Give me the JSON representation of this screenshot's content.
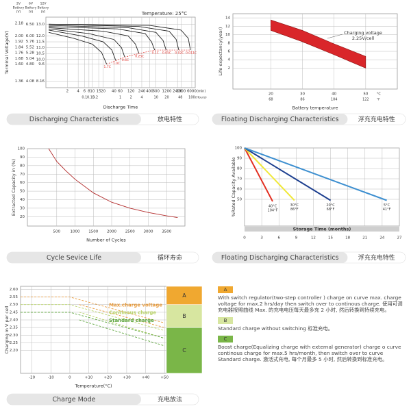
{
  "chart_data": [
    {
      "type": "line",
      "title": "Temperature: 25°C",
      "y_label": "Terminal Voltage(V)",
      "x_label": "Discharge Time",
      "x_unit": "(min)",
      "x2_unit": "(Hours)",
      "log_x": true,
      "grid": true,
      "end_line_color": "#e0302a",
      "xlim": [
        0.5,
        7500
      ],
      "x2lim": [
        0.008333,
        125
      ],
      "ylim": [
        7.6,
        13.6
      ],
      "ylim_6v": [
        3.8,
        6.8
      ],
      "ylim_2v": [
        1.2667,
        2.2667
      ],
      "xticks": [
        2,
        4,
        6,
        8,
        10,
        15,
        20,
        40,
        60,
        120,
        240,
        400,
        600,
        1200,
        2400,
        3000,
        6000
      ],
      "x2ticks": [
        0.1,
        0.15,
        0.2,
        1,
        2,
        4,
        10,
        20,
        48,
        100
      ],
      "y_headers": [
        [
          "2V",
          "Battery",
          "(V)"
        ],
        [
          "6V",
          "Battery",
          "(V)"
        ],
        [
          "12V",
          "Battery",
          "(V)"
        ]
      ],
      "yticks": [
        {
          "value": 13,
          "label": "13.0"
        },
        {
          "value": 12,
          "label": "12.0"
        },
        11.5,
        {
          "value": 11,
          "label": "11.0"
        },
        10.5,
        {
          "value": 10,
          "label": "10.0"
        },
        9.6,
        8.16
      ],
      "yticks_6v": [
        {
          "value": 6.5,
          "label": "6.50"
        },
        {
          "value": 6,
          "label": "6.00"
        },
        5.76,
        5.52,
        5.28,
        5.04,
        {
          "value": 4.8,
          "label": "4.80"
        },
        4.08
      ],
      "yticks_2v": [
        2.18,
        {
          "value": 2,
          "label": "2.00"
        },
        1.92,
        1.84,
        1.76,
        1.68,
        {
          "value": 1.6,
          "label": "1.60"
        },
        1.36
      ],
      "series": [
        {
          "name": "1.7C",
          "color": "#222222",
          "x": [
            0.6,
            3,
            10,
            18,
            25
          ],
          "values": [
            12.3,
            11.8,
            11.3,
            10.6,
            9.6
          ]
        },
        {
          "name": "1.0C",
          "color": "#222222",
          "x": [
            0.6,
            5,
            20,
            35,
            45
          ],
          "values": [
            12.5,
            12.0,
            11.5,
            10.8,
            9.9
          ]
        },
        {
          "name": "0.6C",
          "color": "#222222",
          "x": [
            0.6,
            8,
            40,
            65,
            80
          ],
          "values": [
            12.6,
            12.2,
            11.7,
            11.0,
            10.2
          ]
        },
        {
          "name": "0.25C",
          "color": "#222222",
          "x": [
            0.6,
            20,
            100,
            160,
            200
          ],
          "values": [
            12.7,
            12.4,
            12.0,
            11.3,
            10.5
          ]
        },
        {
          "name": "0.1C",
          "color": "#222222",
          "x": [
            0.6,
            50,
            300,
            450,
            550
          ],
          "values": [
            12.8,
            12.6,
            12.2,
            11.5,
            10.8
          ]
        },
        {
          "name": "0.05C",
          "color": "#222222",
          "x": [
            0.6,
            100,
            600,
            950,
            1150
          ],
          "values": [
            12.9,
            12.7,
            12.3,
            11.6,
            10.8
          ]
        },
        {
          "name": "0.02C",
          "color": "#222222",
          "x": [
            0.6,
            200,
            1400,
            2200,
            2600
          ],
          "values": [
            13.0,
            12.8,
            12.4,
            11.7,
            10.8
          ]
        },
        {
          "name": "0.011C",
          "color": "#222222",
          "x": [
            0.6,
            400,
            3000,
            4800,
            5500
          ],
          "values": [
            13.0,
            12.9,
            12.5,
            11.8,
            10.8
          ]
        }
      ],
      "caption": "Discharging Characteristics",
      "caption_zh": "放电特性"
    },
    {
      "type": "area",
      "y_label": "Life expectancy(year)",
      "x_label": "Battery temperature",
      "annotation": [
        "Charging voltage",
        "2.25V/cell"
      ],
      "x_unit": "°C",
      "x2_unit": "°F",
      "grid": true,
      "xlim": [
        8,
        60
      ],
      "x2lim": [
        46.4,
        140
      ],
      "ylim": [
        -3,
        15
      ],
      "xticks": [
        20,
        30,
        40,
        50
      ],
      "x2ticks": [
        68,
        86,
        104,
        122
      ],
      "yticks": [
        2,
        4,
        6,
        8,
        10,
        12,
        14
      ],
      "color": "#d9262a",
      "x": [
        20,
        30,
        40,
        50
      ],
      "upper": [
        13.5,
        11,
        7.8,
        4.8
      ],
      "lower": [
        11,
        8.3,
        5.2,
        2
      ],
      "caption": "Floating Discharging Characteristics",
      "caption_zh": "浮充充电特性"
    },
    {
      "type": "line",
      "y_label": "Extracted Capacity in (%)",
      "x_label": "Number of Cycles",
      "grid": true,
      "xlim": [
        -300,
        4000
      ],
      "ylim": [
        9,
        100
      ],
      "xticks": [
        500,
        1000,
        1500,
        2000,
        2500,
        3000,
        3500
      ],
      "yticks": [
        20,
        30,
        40,
        50,
        60,
        70,
        80,
        90,
        100
      ],
      "series": [
        {
          "color": "#b22a2a",
          "x": [
            280,
            500,
            750,
            1000,
            1500,
            2000,
            2500,
            3000,
            3500,
            3800
          ],
          "values": [
            100,
            85,
            74,
            64,
            48,
            37,
            30,
            25,
            21,
            19
          ]
        }
      ],
      "caption": "Cycle Sevice Life",
      "caption_zh": "循环寿命"
    },
    {
      "type": "line",
      "y_label": "%Rated Capacity Available",
      "x_label": "Storage Time  (months)",
      "grid": true,
      "xlim": [
        0,
        27
      ],
      "ylim": [
        24,
        100
      ],
      "xticks": [
        0,
        3,
        6,
        9,
        12,
        15,
        18,
        21,
        24,
        27
      ],
      "yticks": [
        50,
        60,
        70,
        80,
        90,
        100
      ],
      "series": [
        {
          "name": "40°C",
          "name_f": "104°F",
          "color": "#e33022",
          "x": [
            0,
            4.9
          ],
          "values": [
            100,
            48
          ]
        },
        {
          "name": "30°C",
          "name_f": "86°F",
          "color": "#f0e83a",
          "x": [
            0,
            8.7
          ],
          "values": [
            100,
            49
          ]
        },
        {
          "name": "20°C",
          "name_f": "68°F",
          "color": "#1d3f8f",
          "x": [
            0,
            15
          ],
          "values": [
            100,
            49
          ]
        },
        {
          "name": "5°C",
          "name_f": "41°F",
          "color": "#3d8fd0",
          "x": [
            0,
            24.8
          ],
          "values": [
            100,
            49
          ]
        }
      ],
      "caption": "Floating Discharging Characteristics",
      "caption_zh": "浮充充电特性"
    },
    {
      "type": "line",
      "y_label": "Charging in V per cell",
      "x_label": "Temperature(°C)",
      "grid": true,
      "dashed": true,
      "xlim": [
        -26,
        51
      ],
      "ylim": [
        2.05,
        2.62
      ],
      "xticks": [
        -20,
        -10,
        0,
        {
          "value": 10,
          "label": "+10"
        },
        {
          "value": 20,
          "label": "+20"
        },
        {
          "value": 30,
          "label": "+30"
        },
        {
          "value": 40,
          "label": "+40"
        },
        {
          "value": 50,
          "label": "+50"
        }
      ],
      "yticks": [
        {
          "value": 2.6,
          "label": "2.60"
        },
        2.55,
        {
          "value": 2.5,
          "label": "2.50"
        },
        2.45,
        {
          "value": 2.4,
          "label": "2.40"
        },
        2.35,
        {
          "value": 2.3,
          "label": "2.30"
        },
        2.25,
        {
          "value": 2.2,
          "label": "2.20"
        }
      ],
      "zones": [
        {
          "label": "A",
          "from": 2.5,
          "to": 2.62,
          "color": "#f0a830"
        },
        {
          "label": "B",
          "from": 2.35,
          "to": 2.5,
          "color": "#d7e6a0"
        },
        {
          "label": "C",
          "from": 2.05,
          "to": 2.35,
          "color": "#7ab648"
        }
      ],
      "series": [
        {
          "name": "Max.charge voltage",
          "color": "#e89a3a",
          "x": [
            -26,
            0,
            50
          ],
          "values": [
            2.55,
            2.55,
            2.38
          ]
        },
        {
          "color": "#e89a3a",
          "x": [
            5,
            50
          ],
          "values": [
            2.5,
            2.35
          ]
        },
        {
          "name": "Continous charge",
          "color": "#b9d36a",
          "x": [
            -26,
            0,
            50
          ],
          "values": [
            2.5,
            2.5,
            2.33
          ]
        },
        {
          "color": "#b9d36a",
          "x": [
            5,
            50
          ],
          "values": [
            2.45,
            2.28
          ]
        },
        {
          "name": "Standard charge",
          "color": "#5aa43a",
          "x": [
            -26,
            0,
            50
          ],
          "values": [
            2.45,
            2.45,
            2.28
          ]
        },
        {
          "color": "#5aa43a",
          "x": [
            5,
            50
          ],
          "values": [
            2.4,
            2.23
          ]
        }
      ],
      "caption": "Charge Mode",
      "caption_zh": "充电放法"
    }
  ],
  "notes": [
    {
      "label": "A",
      "color": "#f0a830",
      "text": "With switch regulator(two-step controller ) charge on curve max. charge voltage for max.2 hrs/day then switch over to continous charge. 使用可调充电器按照曲线 Max. 的充电电压每天最多充 2 小时, 然后转换到持续充电。"
    },
    {
      "label": "B",
      "color": "#d7e6a0",
      "text": "Standard charge without switching 标准充电。"
    },
    {
      "label": "C",
      "color": "#7ab648",
      "text": "Boost charge(Equalizing charge with external generator) charge o curve continous charge for max.5 hrs/month, then switch over to curve Standard charge. 激活式充电, 每个月最多 5 小时, 然后转换到标准充电。"
    }
  ]
}
